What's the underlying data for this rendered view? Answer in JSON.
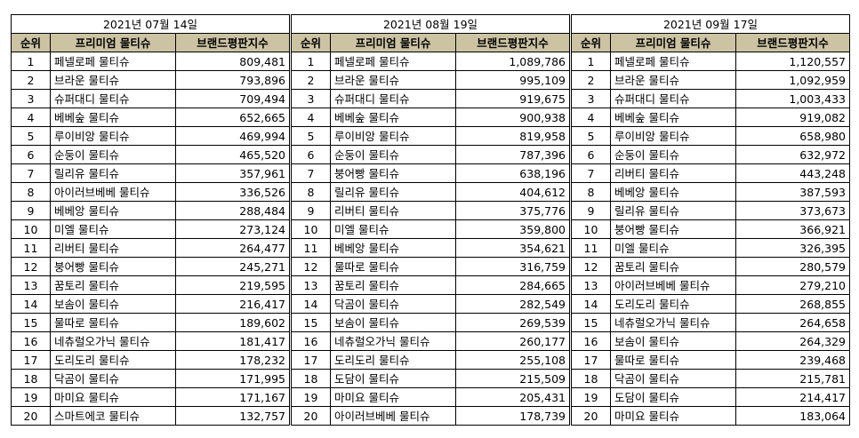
{
  "headers": {
    "rank": "순위",
    "brand": "프리미엄 물티슈",
    "score": "브랜드평판지수"
  },
  "panels": [
    {
      "date": "2021년 07월 14일",
      "rows": [
        [
          "1",
          "페넬로페 물티슈",
          "809,481"
        ],
        [
          "2",
          "브라운 물티슈",
          "793,896"
        ],
        [
          "3",
          "슈퍼대디 물티슈",
          "709,494"
        ],
        [
          "4",
          "베베숲 물티슈",
          "652,665"
        ],
        [
          "5",
          "루이비앙 물티슈",
          "469,994"
        ],
        [
          "6",
          "순둥이 물티슈",
          "465,520"
        ],
        [
          "7",
          "릴리유 물티슈",
          "357,961"
        ],
        [
          "8",
          "아이러브베베 물티슈",
          "336,526"
        ],
        [
          "9",
          "베베앙 물티슈",
          "288,484"
        ],
        [
          "10",
          "미엘 물티슈",
          "273,124"
        ],
        [
          "11",
          "리버티 물티슈",
          "264,477"
        ],
        [
          "12",
          "붕어빵 물티슈",
          "245,271"
        ],
        [
          "13",
          "꿈토리 물티슈",
          "219,595"
        ],
        [
          "14",
          "보솜이 물티슈",
          "216,417"
        ],
        [
          "15",
          "물따로 물티슈",
          "189,602"
        ],
        [
          "16",
          "네츄럴오가닉 물티슈",
          "181,417"
        ],
        [
          "17",
          "도리도리 물티슈",
          "178,232"
        ],
        [
          "18",
          "닥곰이 물티슈",
          "171,995"
        ],
        [
          "19",
          "마미요 물티슈",
          "171,167"
        ],
        [
          "20",
          "스마트에코 물티슈",
          "132,757"
        ]
      ]
    },
    {
      "date": "2021년 08월 19일",
      "rows": [
        [
          "1",
          "페넬로페 물티슈",
          "1,089,786"
        ],
        [
          "2",
          "브라운 물티슈",
          "995,109"
        ],
        [
          "3",
          "슈퍼대디 물티슈",
          "919,675"
        ],
        [
          "4",
          "베베숲 물티슈",
          "900,938"
        ],
        [
          "5",
          "루이비앙 물티슈",
          "819,958"
        ],
        [
          "6",
          "순둥이 물티슈",
          "787,396"
        ],
        [
          "7",
          "붕어빵 물티슈",
          "638,196"
        ],
        [
          "8",
          "릴리유 물티슈",
          "404,612"
        ],
        [
          "9",
          "리버티 물티슈",
          "375,776"
        ],
        [
          "10",
          "미엘 물티슈",
          "359,800"
        ],
        [
          "11",
          "베베앙 물티슈",
          "354,621"
        ],
        [
          "12",
          "물따로 물티슈",
          "316,759"
        ],
        [
          "13",
          "꿈토리 물티슈",
          "284,665"
        ],
        [
          "14",
          "닥곰이 물티슈",
          "282,549"
        ],
        [
          "15",
          "보솜이 물티슈",
          "269,539"
        ],
        [
          "16",
          "네츄럴오가닉 물티슈",
          "260,177"
        ],
        [
          "17",
          "도리도리 물티슈",
          "255,108"
        ],
        [
          "18",
          "도담이 물티슈",
          "215,509"
        ],
        [
          "19",
          "마미요 물티슈",
          "205,431"
        ],
        [
          "20",
          "아이러브베베 물티슈",
          "178,739"
        ]
      ]
    },
    {
      "date": "2021년 09월 17일",
      "rows": [
        [
          "1",
          "페넬로페 물티슈",
          "1,120,557"
        ],
        [
          "2",
          "브라운 물티슈",
          "1,092,959"
        ],
        [
          "3",
          "슈퍼대디 물티슈",
          "1,003,433"
        ],
        [
          "4",
          "베베숲 물티슈",
          "919,082"
        ],
        [
          "5",
          "루이비앙 물티슈",
          "658,980"
        ],
        [
          "6",
          "순둥이 물티슈",
          "632,972"
        ],
        [
          "7",
          "리버티 물티슈",
          "443,248"
        ],
        [
          "8",
          "베베앙 물티슈",
          "387,593"
        ],
        [
          "9",
          "릴리유 물티슈",
          "373,673"
        ],
        [
          "10",
          "붕어빵 물티슈",
          "366,921"
        ],
        [
          "11",
          "미엘 물티슈",
          "326,395"
        ],
        [
          "12",
          "꿈토리 물티슈",
          "280,579"
        ],
        [
          "13",
          "아이러브베베 물티슈",
          "279,210"
        ],
        [
          "14",
          "도리도리 물티슈",
          "268,855"
        ],
        [
          "15",
          "네츄럴오가닉 물티슈",
          "264,658"
        ],
        [
          "16",
          "보솜이 물티슈",
          "264,329"
        ],
        [
          "17",
          "물따로 물티슈",
          "239,468"
        ],
        [
          "18",
          "닥곰이 물티슈",
          "215,781"
        ],
        [
          "19",
          "도담이 물티슈",
          "214,417"
        ],
        [
          "20",
          "마미요 물티슈",
          "183,064"
        ]
      ]
    }
  ]
}
